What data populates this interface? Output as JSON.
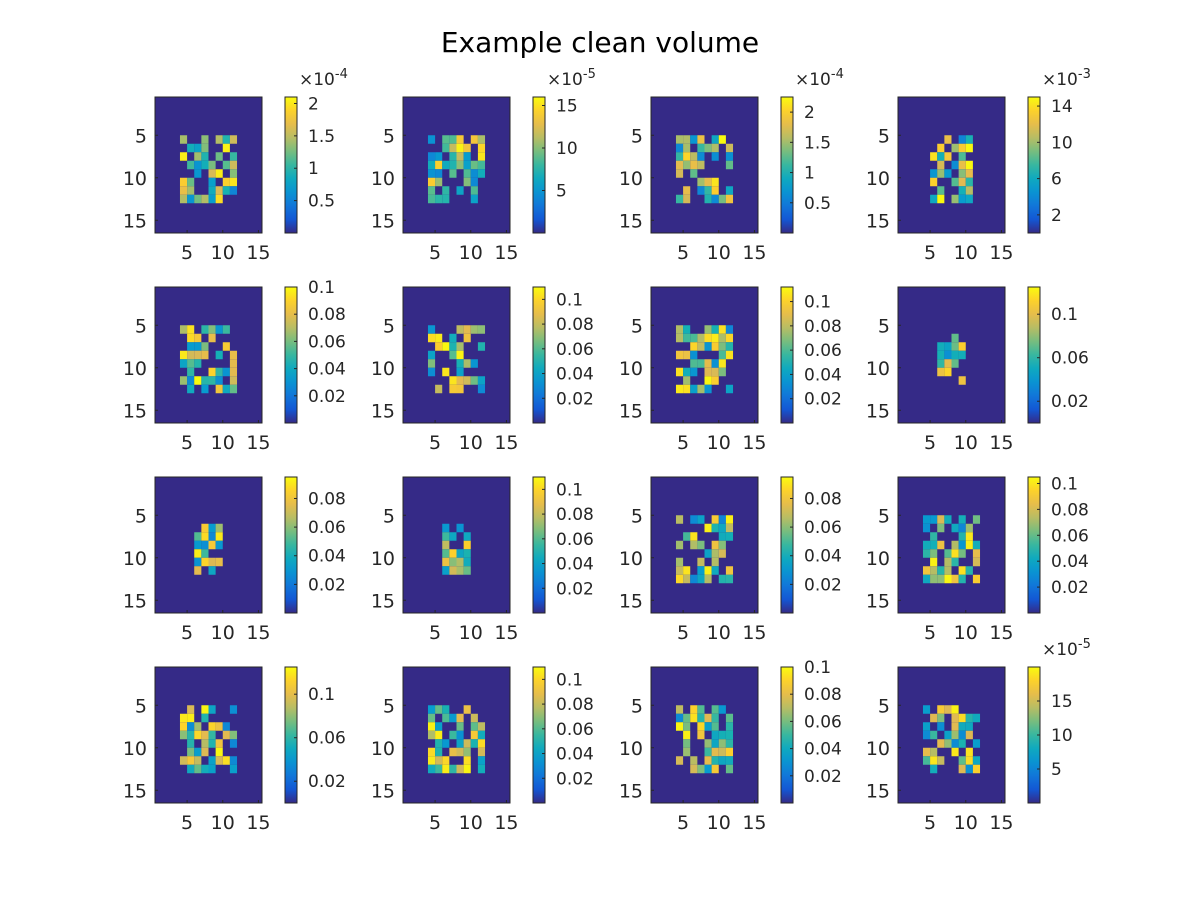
{
  "figure": {
    "title": "Example clean volume",
    "background": "#ffffff",
    "colormap": "parula"
  },
  "chart_data": [
    {
      "type": "heatmap",
      "panel": 1,
      "xticks": [
        5,
        10,
        15
      ],
      "yticks": [
        5,
        10,
        15
      ],
      "colorbar": {
        "exponent": "-4",
        "ticks": [
          0.5,
          1,
          1.5,
          2
        ],
        "tick_labels": [
          "0.5",
          "1",
          "1.5",
          "2"
        ],
        "max": 2.1
      }
    },
    {
      "type": "heatmap",
      "panel": 2,
      "xticks": [
        5,
        10,
        15
      ],
      "yticks": [
        5,
        10,
        15
      ],
      "colorbar": {
        "exponent": "-5",
        "ticks": [
          5,
          10,
          15
        ],
        "tick_labels": [
          "5",
          "10",
          "15"
        ],
        "max": 16
      }
    },
    {
      "type": "heatmap",
      "panel": 3,
      "xticks": [
        5,
        10,
        15
      ],
      "yticks": [
        5,
        10,
        15
      ],
      "colorbar": {
        "exponent": "-4",
        "ticks": [
          0.5,
          1,
          1.5,
          2
        ],
        "tick_labels": [
          "0.5",
          "1",
          "1.5",
          "2"
        ],
        "max": 2.25
      }
    },
    {
      "type": "heatmap",
      "panel": 4,
      "xticks": [
        5,
        10,
        15
      ],
      "yticks": [
        5,
        10,
        15
      ],
      "colorbar": {
        "exponent": "-3",
        "ticks": [
          2,
          6,
          10,
          14
        ],
        "tick_labels": [
          "2",
          "6",
          "10",
          "14"
        ],
        "max": 15
      }
    },
    {
      "type": "heatmap",
      "panel": 5,
      "xticks": [
        5,
        10,
        15
      ],
      "yticks": [
        5,
        10,
        15
      ],
      "colorbar": {
        "ticks": [
          0.02,
          0.04,
          0.06,
          0.08,
          0.1
        ],
        "tick_labels": [
          "0.02",
          "0.04",
          "0.06",
          "0.08",
          "0.1"
        ],
        "max": 0.1
      }
    },
    {
      "type": "heatmap",
      "panel": 6,
      "xticks": [
        5,
        10,
        15
      ],
      "yticks": [
        5,
        10,
        15
      ],
      "colorbar": {
        "ticks": [
          0.02,
          0.04,
          0.06,
          0.08,
          0.1
        ],
        "tick_labels": [
          "0.02",
          "0.04",
          "0.06",
          "0.08",
          "0.1"
        ],
        "max": 0.11
      }
    },
    {
      "type": "heatmap",
      "panel": 7,
      "xticks": [
        5,
        10,
        15
      ],
      "yticks": [
        5,
        10,
        15
      ],
      "colorbar": {
        "ticks": [
          0.02,
          0.04,
          0.06,
          0.08,
          0.1
        ],
        "tick_labels": [
          "0.02",
          "0.04",
          "0.06",
          "0.08",
          "0.1"
        ],
        "max": 0.112
      }
    },
    {
      "type": "heatmap",
      "panel": 8,
      "xticks": [
        5,
        10,
        15
      ],
      "yticks": [
        5,
        10,
        15
      ],
      "colorbar": {
        "ticks": [
          0.02,
          0.06,
          0.1
        ],
        "tick_labels": [
          "0.02",
          "0.06",
          "0.1"
        ],
        "max": 0.125
      }
    },
    {
      "type": "heatmap",
      "panel": 9,
      "xticks": [
        5,
        10,
        15
      ],
      "yticks": [
        5,
        10,
        15
      ],
      "colorbar": {
        "ticks": [
          0.02,
          0.04,
          0.06,
          0.08
        ],
        "tick_labels": [
          "0.02",
          "0.04",
          "0.06",
          "0.08"
        ],
        "max": 0.095
      }
    },
    {
      "type": "heatmap",
      "panel": 10,
      "xticks": [
        5,
        10,
        15
      ],
      "yticks": [
        5,
        10,
        15
      ],
      "colorbar": {
        "ticks": [
          0.02,
          0.04,
          0.06,
          0.08,
          0.1
        ],
        "tick_labels": [
          "0.02",
          "0.04",
          "0.06",
          "0.08",
          "0.1"
        ],
        "max": 0.11
      }
    },
    {
      "type": "heatmap",
      "panel": 11,
      "xticks": [
        5,
        10,
        15
      ],
      "yticks": [
        5,
        10,
        15
      ],
      "colorbar": {
        "ticks": [
          0.02,
          0.04,
          0.06,
          0.08
        ],
        "tick_labels": [
          "0.02",
          "0.04",
          "0.06",
          "0.08"
        ],
        "max": 0.095
      }
    },
    {
      "type": "heatmap",
      "panel": 12,
      "xticks": [
        5,
        10,
        15
      ],
      "yticks": [
        5,
        10,
        15
      ],
      "colorbar": {
        "ticks": [
          0.02,
          0.04,
          0.06,
          0.08,
          0.1
        ],
        "tick_labels": [
          "0.02",
          "0.04",
          "0.06",
          "0.08",
          "0.1"
        ],
        "max": 0.105
      }
    },
    {
      "type": "heatmap",
      "panel": 13,
      "xticks": [
        5,
        10,
        15
      ],
      "yticks": [
        5,
        10,
        15
      ],
      "colorbar": {
        "ticks": [
          0.02,
          0.06,
          0.1
        ],
        "tick_labels": [
          "0.02",
          "0.06",
          "0.1"
        ],
        "max": 0.125
      }
    },
    {
      "type": "heatmap",
      "panel": 14,
      "xticks": [
        5,
        10,
        15
      ],
      "yticks": [
        5,
        10,
        15
      ],
      "colorbar": {
        "ticks": [
          0.02,
          0.04,
          0.06,
          0.08,
          0.1
        ],
        "tick_labels": [
          "0.02",
          "0.04",
          "0.06",
          "0.08",
          "0.1"
        ],
        "max": 0.11
      }
    },
    {
      "type": "heatmap",
      "panel": 15,
      "xticks": [
        5,
        10,
        15
      ],
      "yticks": [
        5,
        10,
        15
      ],
      "colorbar": {
        "ticks": [
          0.02,
          0.04,
          0.06,
          0.08,
          0.1
        ],
        "tick_labels": [
          "0.02",
          "0.04",
          "0.06",
          "0.08",
          "0.1"
        ],
        "max": 0.1
      }
    },
    {
      "type": "heatmap",
      "panel": 16,
      "xticks": [
        5,
        10,
        15
      ],
      "yticks": [
        5,
        10,
        15
      ],
      "colorbar": {
        "exponent": "-5",
        "ticks": [
          5,
          10,
          15
        ],
        "tick_labels": [
          "5",
          "10",
          "15"
        ],
        "max": 20
      }
    }
  ]
}
